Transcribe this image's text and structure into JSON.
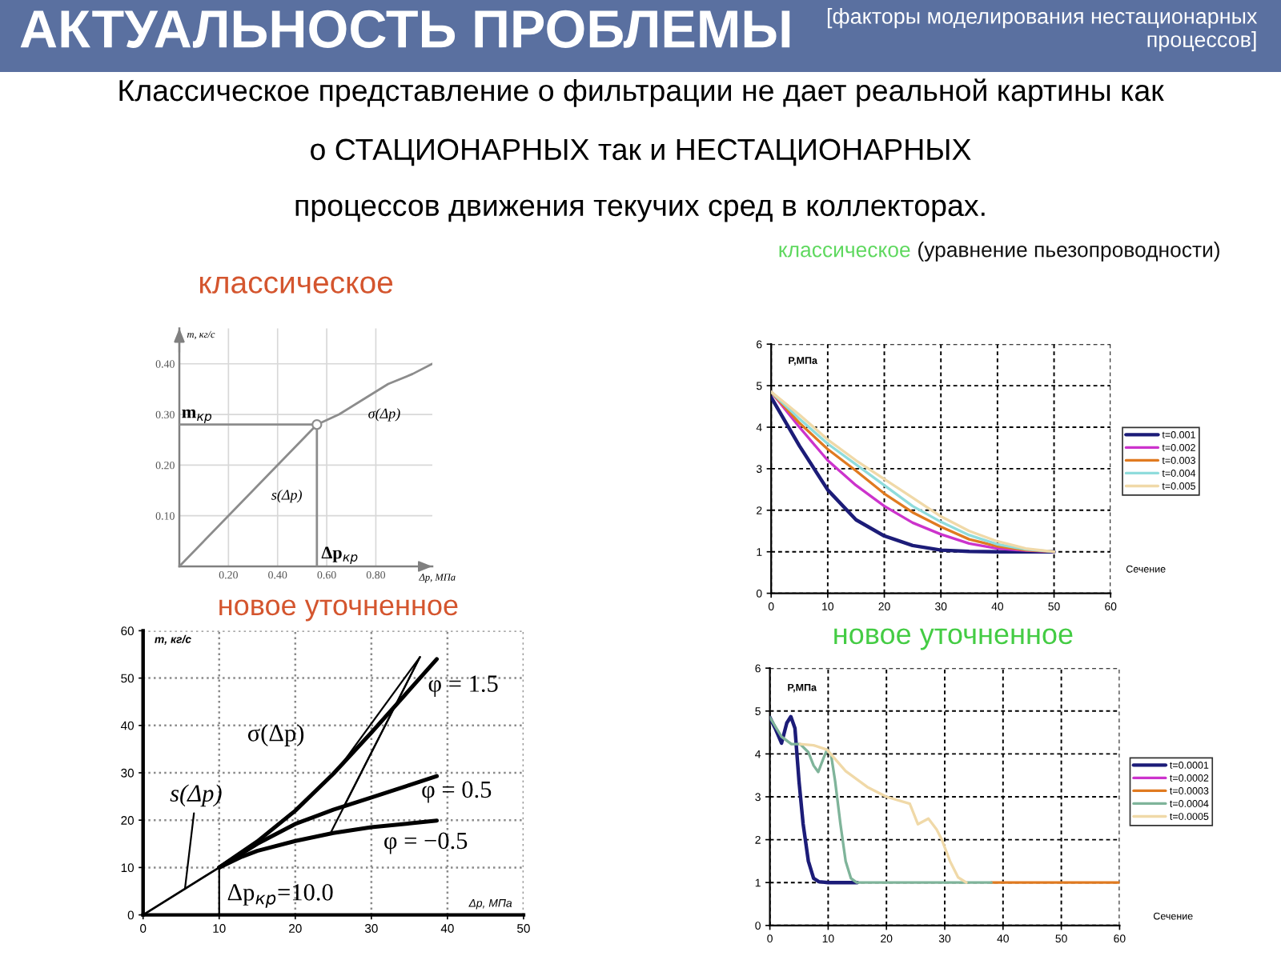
{
  "chart_data": [
    {
      "type": "other",
      "title": "АКТУАЛЬНОСТЬ ПРОБЛЕМЫ",
      "subtitle": "[факторы моделирования нестационарных процессов]",
      "annotations": [
        "Классическое представление о фильтрации не дает реальной картины как",
        "о СТАЦИОНАРНЫХ так и НЕСТАЦИОНАРНЫХ",
        "процессов движения текучих сред в коллекторах."
      ]
    },
    {
      "type": "line",
      "title": "классическое",
      "xlabel": "Δp, МПа",
      "ylabel": "m, кг/с",
      "xlim": [
        0,
        1.03
      ],
      "ylim": [
        0,
        0.47
      ],
      "xticks": [
        {
          "value": 0.2,
          "label": "0.20"
        },
        {
          "value": 0.4,
          "label": "0.40"
        },
        {
          "value": 0.6,
          "label": "0.60"
        },
        {
          "value": 0.8,
          "label": "0.80"
        }
      ],
      "yticks": [
        {
          "value": 0.1,
          "label": "0.10"
        },
        {
          "value": 0.2,
          "label": "0.20"
        },
        {
          "value": 0.3,
          "label": "0.30"
        },
        {
          "value": 0.4,
          "label": "0.40"
        }
      ],
      "grid": true,
      "series": [
        {
          "name": "s(Δp)",
          "color": "#8c8c8c",
          "x": [
            0,
            0.56
          ],
          "values": [
            0,
            0.28
          ]
        },
        {
          "name": "σ(Δp)",
          "color": "#8c8c8c",
          "x": [
            0.56,
            0.65,
            0.75,
            0.85,
            0.95,
            1.03
          ],
          "values": [
            0.28,
            0.3,
            0.33,
            0.36,
            0.38,
            0.4
          ]
        },
        {
          "name": "m$_{кр}$",
          "color": "#8c8c8c",
          "x": [
            0,
            0.56
          ],
          "values": [
            0.28,
            0.28
          ]
        },
        {
          "name": "Δp$_{кр}$",
          "color": "#8c8c8c",
          "x": [
            0.56,
            0.56
          ],
          "values": [
            0,
            0.28
          ]
        },
        {
          "type": "scatter",
          "marker": "circle",
          "color": "#8c8c8c",
          "x": [
            0.56
          ],
          "values": [
            0.28
          ]
        }
      ]
    },
    {
      "type": "line",
      "title": "классическое",
      "subtitle": "(уравнение пьезопроводности)",
      "xlabel": "Сечение",
      "ylabel": "P,МПа",
      "xlim": [
        0,
        60
      ],
      "ylim": [
        0,
        6
      ],
      "xticks": [
        0,
        10,
        20,
        30,
        40,
        50,
        60
      ],
      "yticks": [
        0,
        1,
        2,
        3,
        4,
        5,
        6
      ],
      "grid": true,
      "legend": "right",
      "x": [
        0,
        5,
        10,
        15,
        20,
        25,
        30,
        35,
        40,
        45,
        50
      ],
      "series": [
        {
          "name": "t=0.001",
          "color": "#1c1c78",
          "values": [
            4.72,
            3.55,
            2.49,
            1.77,
            1.38,
            1.15,
            1.04,
            1.01,
            1.0,
            1.0,
            1.0
          ]
        },
        {
          "name": "t=0.002",
          "color": "#cc33cc",
          "values": [
            4.85,
            4.0,
            3.2,
            2.6,
            2.1,
            1.7,
            1.42,
            1.2,
            1.08,
            1.03,
            1.0
          ]
        },
        {
          "name": "t=0.003",
          "color": "#e07a20",
          "values": [
            4.85,
            4.1,
            3.47,
            2.95,
            2.4,
            1.95,
            1.6,
            1.3,
            1.13,
            1.04,
            1.0
          ]
        },
        {
          "name": "t=0.004",
          "color": "#8fdcdc",
          "values": [
            4.85,
            4.2,
            3.6,
            3.1,
            2.6,
            2.1,
            1.72,
            1.4,
            1.18,
            1.06,
            1.0
          ]
        },
        {
          "name": "t=0.005",
          "color": "#f0d9a8",
          "values": [
            4.85,
            4.3,
            3.7,
            3.2,
            2.75,
            2.3,
            1.85,
            1.5,
            1.25,
            1.08,
            1.0
          ]
        }
      ]
    },
    {
      "type": "line",
      "title": "новое уточненное",
      "xlabel": "Δp, МПа",
      "ylabel": "m, кг/с",
      "xlim": [
        0,
        50
      ],
      "ylim": [
        0,
        60
      ],
      "xticks": [
        0,
        10,
        20,
        30,
        40,
        50
      ],
      "yticks": [
        0,
        10,
        20,
        30,
        40,
        50,
        60
      ],
      "grid": true,
      "series": [
        {
          "name": "s(Δp)",
          "color": "#000000",
          "x": [
            0,
            10
          ],
          "values": [
            0,
            10
          ]
        },
        {
          "name": "φ = 1.5",
          "color": "#000000",
          "x": [
            10,
            15,
            20,
            25,
            30,
            35,
            38.6
          ],
          "values": [
            10,
            15.5,
            22,
            29.8,
            38.5,
            47.5,
            54
          ]
        },
        {
          "name": "φ = 0.5",
          "color": "#000000",
          "x": [
            10,
            15,
            20,
            25,
            30,
            35,
            38.6
          ],
          "values": [
            10,
            15,
            19.2,
            22.2,
            24.8,
            27.4,
            29.3
          ]
        },
        {
          "name": "φ = −0.5",
          "color": "#000000",
          "x": [
            10,
            13,
            15,
            20,
            25,
            30,
            35,
            38.6
          ],
          "values": [
            10,
            12.3,
            13.5,
            15.6,
            17.3,
            18.5,
            19.3,
            19.9
          ]
        },
        {
          "name": "Δp$_{кр}$=10.0",
          "color": "#000000",
          "x": [
            10,
            10
          ],
          "values": [
            0,
            10
          ]
        }
      ],
      "annotations": [
        "σ(Δp)"
      ]
    },
    {
      "type": "line",
      "title": "новое уточненное",
      "xlabel": "Сечение",
      "ylabel": "P,МПа",
      "xlim": [
        0,
        60
      ],
      "ylim": [
        0,
        6
      ],
      "xticks": [
        0,
        10,
        20,
        30,
        40,
        50,
        60
      ],
      "yticks": [
        0,
        1,
        2,
        3,
        4,
        5,
        6
      ],
      "grid": true,
      "legend": "right",
      "series": [
        {
          "name": "t=0.0001",
          "color": "#1c1c78",
          "x": [
            0,
            0.9,
            2,
            2.9,
            3.6,
            4.3,
            5,
            5.7,
            6.6,
            7.5,
            8.4,
            10,
            15
          ],
          "values": [
            4.85,
            4.6,
            4.25,
            4.72,
            4.87,
            4.6,
            3.36,
            2.37,
            1.5,
            1.1,
            1.02,
            1.0,
            1.0
          ]
        },
        {
          "name": "t=0.0002",
          "color": "#cc33cc",
          "x": [
            null
          ],
          "values": [
            null
          ]
        },
        {
          "name": "t=0.0003",
          "color": "#e07a20",
          "x": [
            38,
            60
          ],
          "values": [
            1.0,
            1.0
          ]
        },
        {
          "name": "t=0.0004",
          "color": "#7fb49a",
          "x": [
            0,
            2,
            3.7,
            5.2,
            6.6,
            7.5,
            8.3,
            9.2,
            9.8,
            10.5,
            11.2,
            12.1,
            13,
            13.9,
            14.9,
            38
          ],
          "values": [
            4.85,
            4.4,
            4.23,
            4.23,
            4.04,
            3.73,
            3.58,
            3.9,
            4.1,
            3.98,
            3.36,
            2.37,
            1.5,
            1.1,
            1.0,
            1.0
          ]
        },
        {
          "name": "t=0.0005",
          "color": "#f0d9a8",
          "x": [
            5.2,
            7.5,
            9.8,
            13,
            16.7,
            20,
            24,
            25.4,
            27.2,
            28.6,
            29.5,
            30.9,
            32.3,
            33.7
          ],
          "values": [
            4.23,
            4.2,
            4.1,
            3.6,
            3.23,
            3.0,
            2.84,
            2.36,
            2.49,
            2.24,
            2.0,
            1.5,
            1.12,
            1.0
          ]
        }
      ]
    }
  ]
}
